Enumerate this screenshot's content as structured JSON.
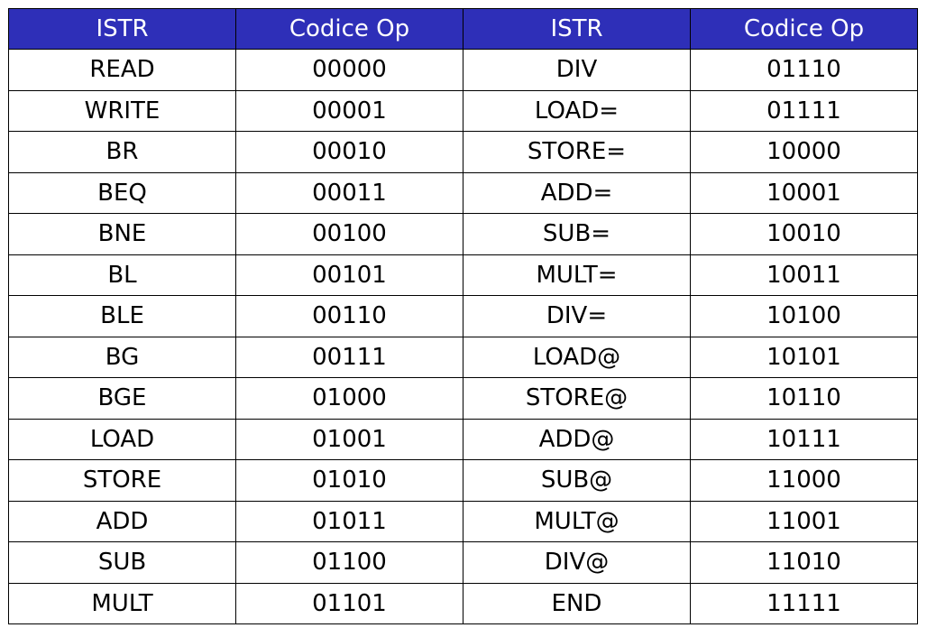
{
  "table": {
    "headers": [
      "ISTR",
      "Codice Op",
      "ISTR",
      "Codice Op"
    ],
    "rows": [
      [
        "READ",
        "00000",
        "DIV",
        "01110"
      ],
      [
        "WRITE",
        "00001",
        "LOAD=",
        "01111"
      ],
      [
        "BR",
        "00010",
        "STORE=",
        "10000"
      ],
      [
        "BEQ",
        "00011",
        "ADD=",
        "10001"
      ],
      [
        "BNE",
        "00100",
        "SUB=",
        "10010"
      ],
      [
        "BL",
        "00101",
        "MULT=",
        "10011"
      ],
      [
        "BLE",
        "00110",
        "DIV=",
        "10100"
      ],
      [
        "BG",
        "00111",
        "LOAD@",
        "10101"
      ],
      [
        "BGE",
        "01000",
        "STORE@",
        "10110"
      ],
      [
        "LOAD",
        "01001",
        "ADD@",
        "10111"
      ],
      [
        "STORE",
        "01010",
        "SUB@",
        "11000"
      ],
      [
        "ADD",
        "01011",
        "MULT@",
        "11001"
      ],
      [
        "SUB",
        "01100",
        "DIV@",
        "11010"
      ],
      [
        "MULT",
        "01101",
        "END",
        "11111"
      ]
    ]
  },
  "colors": {
    "header_bg": "#2e2fb8",
    "header_text": "#ffffff",
    "cell_text": "#000000",
    "border": "#000000"
  }
}
